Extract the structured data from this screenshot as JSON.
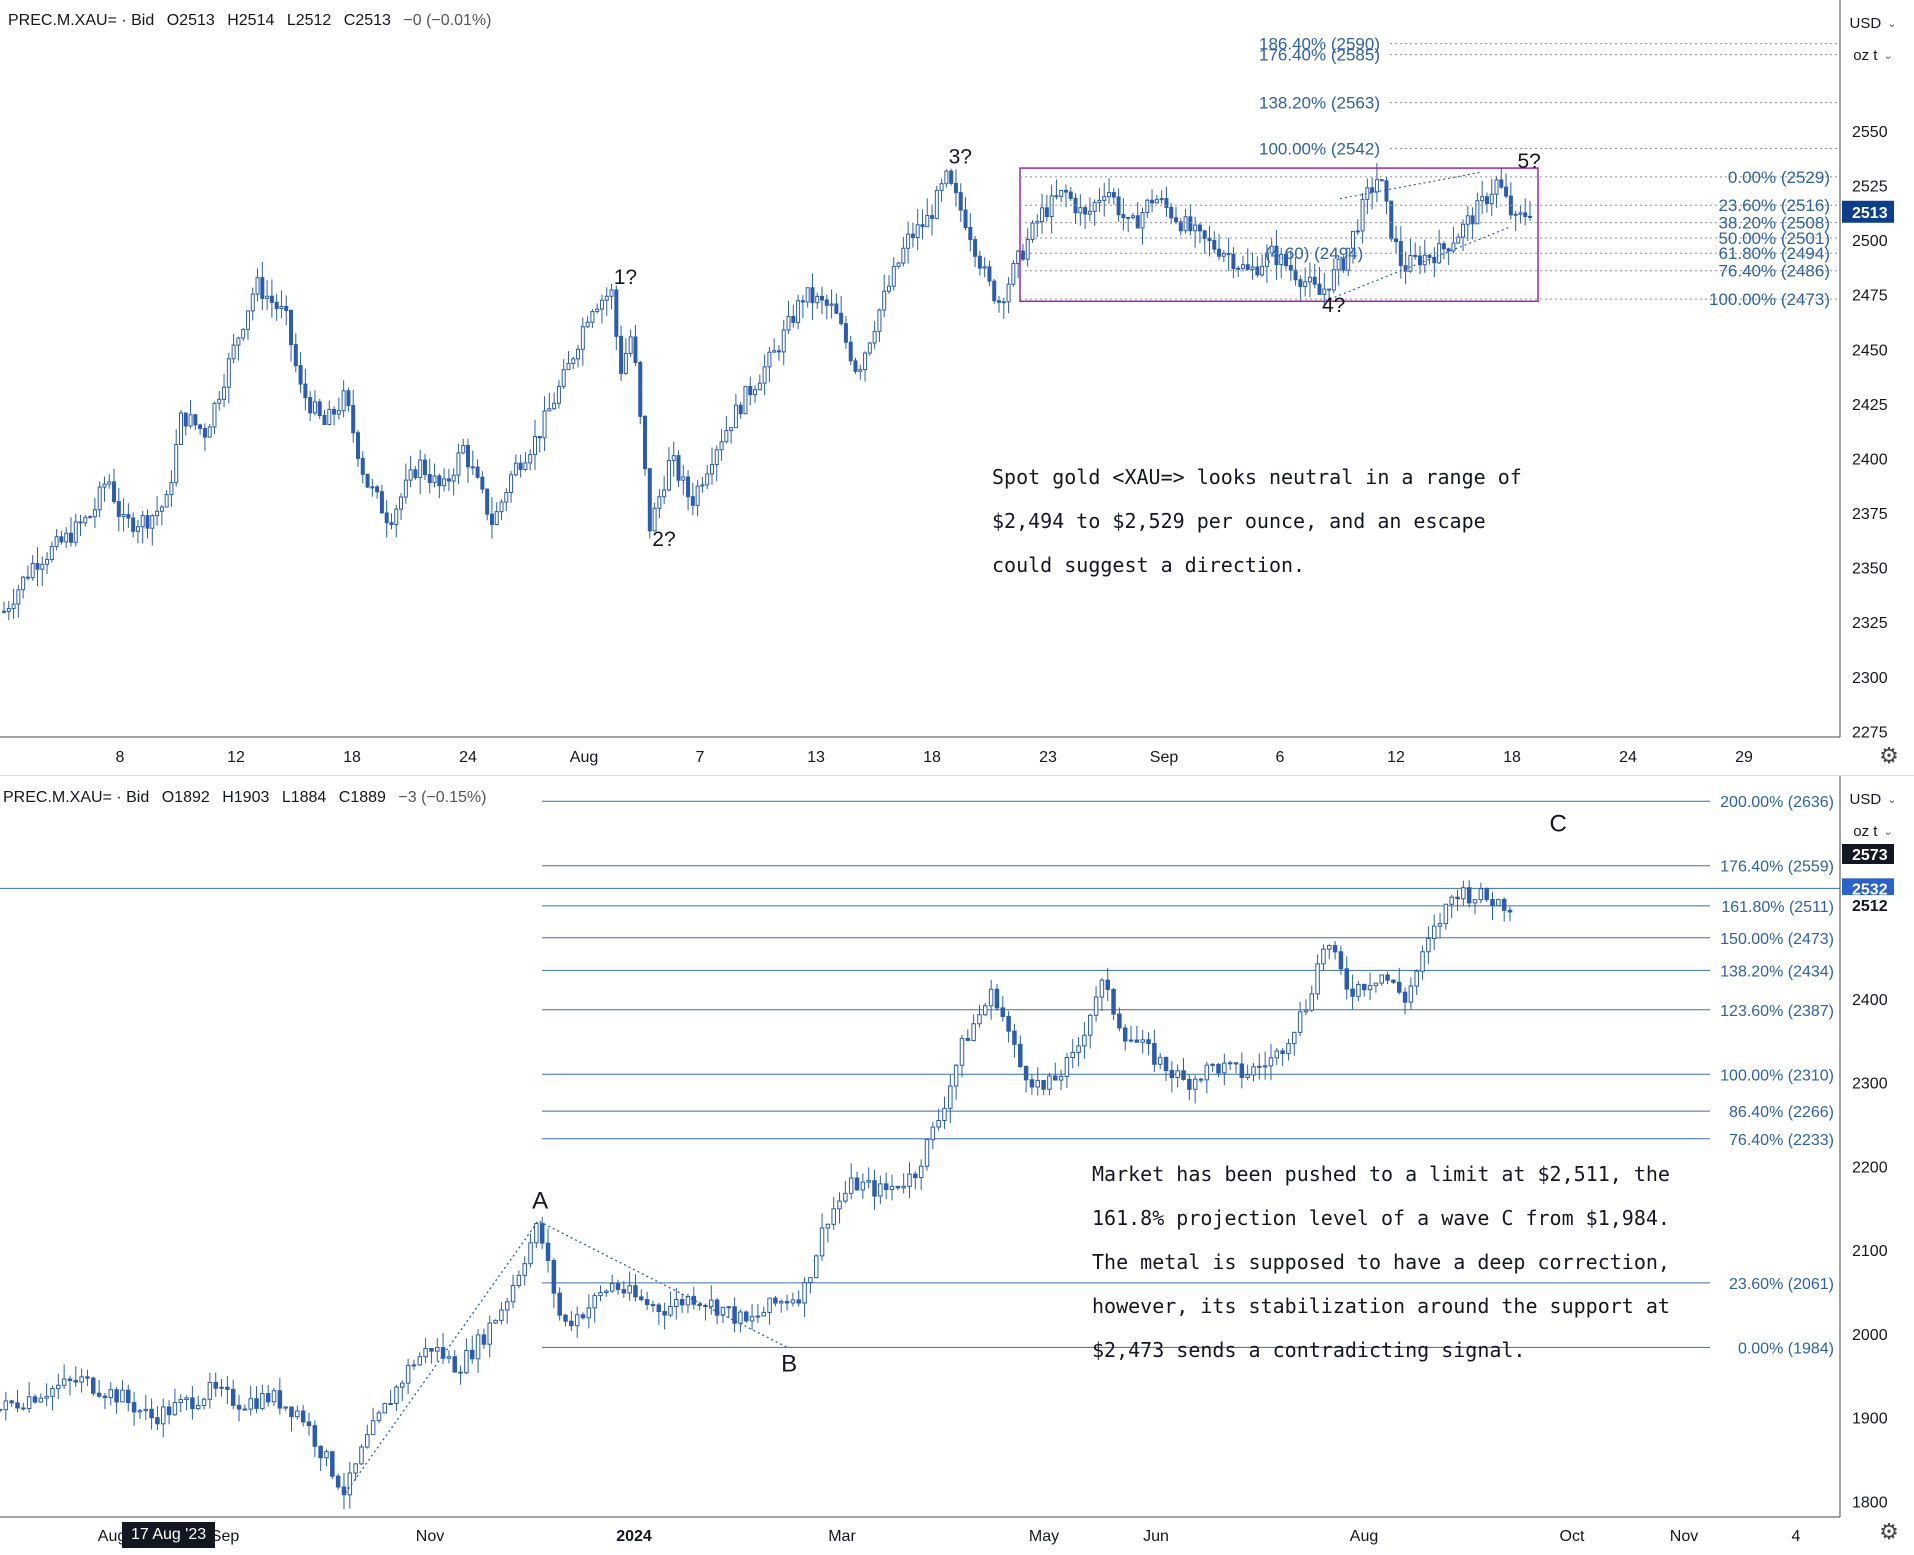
{
  "chart_data": [
    {
      "type": "candlestick",
      "header": {
        "symbol": "PREC.M.XAU= · Bid",
        "open": "O2513",
        "high": "H2514",
        "low": "L2512",
        "close": "C2513",
        "change": "−0 (−0.01%)"
      },
      "currency": "USD",
      "unit": "oz t",
      "ylim": [
        2255,
        2610
      ],
      "y_ticks": [
        2275,
        2300,
        2325,
        2350,
        2375,
        2400,
        2425,
        2450,
        2475,
        2500,
        2525,
        2550
      ],
      "x_ticks": [
        "",
        "8",
        "12",
        "18",
        "24",
        "Aug",
        "7",
        "13",
        "18",
        "23",
        "Sep",
        "6",
        "12",
        "18",
        "24",
        "29"
      ],
      "last_price": "2513",
      "price_path": [
        [
          0,
          2330
        ],
        [
          10,
          2352
        ],
        [
          20,
          2362
        ],
        [
          30,
          2375
        ],
        [
          35,
          2392
        ],
        [
          40,
          2370
        ],
        [
          48,
          2372
        ],
        [
          55,
          2380
        ],
        [
          60,
          2420
        ],
        [
          68,
          2412
        ],
        [
          75,
          2440
        ],
        [
          85,
          2480
        ],
        [
          95,
          2465
        ],
        [
          100,
          2432
        ],
        [
          108,
          2415
        ],
        [
          115,
          2428
        ],
        [
          122,
          2390
        ],
        [
          130,
          2372
        ],
        [
          140,
          2398
        ],
        [
          148,
          2385
        ],
        [
          155,
          2405
        ],
        [
          165,
          2370
        ],
        [
          172,
          2395
        ],
        [
          180,
          2410
        ],
        [
          190,
          2440
        ],
        [
          198,
          2470
        ],
        [
          205,
          2476
        ],
        [
          208,
          2440
        ],
        [
          212,
          2458
        ],
        [
          218,
          2368
        ],
        [
          225,
          2400
        ],
        [
          232,
          2380
        ],
        [
          240,
          2405
        ],
        [
          250,
          2428
        ],
        [
          260,
          2448
        ],
        [
          270,
          2475
        ],
        [
          280,
          2468
        ],
        [
          288,
          2440
        ],
        [
          296,
          2470
        ],
        [
          305,
          2500
        ],
        [
          312,
          2510
        ],
        [
          318,
          2528
        ],
        [
          325,
          2508
        ],
        [
          332,
          2480
        ],
        [
          336,
          2472
        ],
        [
          342,
          2490
        ],
        [
          350,
          2512
        ],
        [
          358,
          2522
        ],
        [
          365,
          2510
        ],
        [
          372,
          2525
        ],
        [
          380,
          2505
        ],
        [
          388,
          2520
        ],
        [
          396,
          2510
        ],
        [
          404,
          2500
        ],
        [
          412,
          2495
        ],
        [
          420,
          2485
        ],
        [
          428,
          2494
        ],
        [
          436,
          2485
        ],
        [
          444,
          2475
        ],
        [
          452,
          2490
        ],
        [
          460,
          2520
        ],
        [
          464,
          2530
        ],
        [
          468,
          2505
        ],
        [
          472,
          2487
        ],
        [
          478,
          2492
        ],
        [
          485,
          2495
        ],
        [
          492,
          2505
        ],
        [
          498,
          2515
        ],
        [
          504,
          2527
        ],
        [
          510,
          2508
        ],
        [
          515,
          2514
        ]
      ],
      "fib_retracement": [
        {
          "label": "0.00% (2529)",
          "price": 2529
        },
        {
          "label": "23.60% (2516)",
          "price": 2516
        },
        {
          "label": "38.20% (2508)",
          "price": 2508
        },
        {
          "label": "50.00% (2501)",
          "price": 2501
        },
        {
          "label": "61.80% (2494)",
          "price": 2494
        },
        {
          "label": "76.40% (2486)",
          "price": 2486
        },
        {
          "label": "100.00% (2473)",
          "price": 2473
        }
      ],
      "fib_extension": [
        {
          "label": "186.40% (2590)",
          "price": 2590
        },
        {
          "label": "176.40% (2585)",
          "price": 2585
        },
        {
          "label": "138.20% (2563)",
          "price": 2563
        },
        {
          "label": "100.00% (2542)",
          "price": 2542
        }
      ],
      "inner_label": "(4.60) (2494)",
      "wave_labels": [
        {
          "text": "1?",
          "x": 205,
          "price": 2480
        },
        {
          "text": "2?",
          "x": 218,
          "price": 2360
        },
        {
          "text": "3?",
          "x": 318,
          "price": 2535
        },
        {
          "text": "4?",
          "x": 444,
          "price": 2467
        },
        {
          "text": "5?",
          "x": 510,
          "price": 2533
        }
      ],
      "annotation": [
        "Spot gold <XAU=> looks neutral in a range of",
        "$2,494 to $2,529 per ounce, and an escape",
        "could suggest a direction."
      ]
    },
    {
      "type": "candlestick",
      "header": {
        "symbol": "PREC.M.XAU= · Bid",
        "open": "O1892",
        "high": "H1903",
        "low": "L1884",
        "close": "C1889",
        "change": "−3 (−0.15%)"
      },
      "currency": "USD",
      "unit": "oz t",
      "ylim": [
        1760,
        2690
      ],
      "y_ticks": [
        1800,
        1900,
        2000,
        2100,
        2200,
        2300,
        2400,
        2500
      ],
      "x_ticks": [
        "Aug",
        "Sep",
        "Nov",
        "2024",
        "Mar",
        "May",
        "Jun",
        "Aug",
        "Oct",
        "Nov",
        "4"
      ],
      "date_tag": "17 Aug '23",
      "price_tags": [
        {
          "text": "2573",
          "price": 2573
        },
        {
          "text": "2532",
          "price": 2532
        },
        {
          "text": "2512",
          "price": 2512
        }
      ],
      "price_path": [
        [
          0,
          1910
        ],
        [
          20,
          1930
        ],
        [
          40,
          1945
        ],
        [
          60,
          1925
        ],
        [
          75,
          1900
        ],
        [
          90,
          1915
        ],
        [
          105,
          1932
        ],
        [
          120,
          1918
        ],
        [
          135,
          1925
        ],
        [
          150,
          1905
        ],
        [
          160,
          1860
        ],
        [
          172,
          1810
        ],
        [
          182,
          1870
        ],
        [
          195,
          1925
        ],
        [
          205,
          1965
        ],
        [
          215,
          1985
        ],
        [
          228,
          1960
        ],
        [
          240,
          1995
        ],
        [
          252,
          2040
        ],
        [
          268,
          2130
        ],
        [
          280,
          2010
        ],
        [
          292,
          2030
        ],
        [
          305,
          2060
        ],
        [
          318,
          2040
        ],
        [
          330,
          2030
        ],
        [
          345,
          2045
        ],
        [
          360,
          2030
        ],
        [
          372,
          2012
        ],
        [
          385,
          2035
        ],
        [
          400,
          2050
        ],
        [
          412,
          2140
        ],
        [
          425,
          2180
        ],
        [
          440,
          2170
        ],
        [
          455,
          2190
        ],
        [
          468,
          2260
        ],
        [
          480,
          2350
        ],
        [
          495,
          2410
        ],
        [
          508,
          2320
        ],
        [
          520,
          2290
        ],
        [
          535,
          2330
        ],
        [
          548,
          2420
        ],
        [
          560,
          2360
        ],
        [
          575,
          2330
        ],
        [
          590,
          2300
        ],
        [
          605,
          2320
        ],
        [
          620,
          2310
        ],
        [
          635,
          2330
        ],
        [
          650,
          2390
        ],
        [
          660,
          2470
        ],
        [
          672,
          2410
        ],
        [
          688,
          2430
        ],
        [
          700,
          2400
        ],
        [
          712,
          2470
        ],
        [
          725,
          2530
        ],
        [
          740,
          2520
        ],
        [
          752,
          2512
        ]
      ],
      "fib_levels": [
        {
          "label": "200.00% (2636)",
          "price": 2636
        },
        {
          "label": "176.40% (2559)",
          "price": 2559
        },
        {
          "label": "161.80% (2511)",
          "price": 2511
        },
        {
          "label": "150.00% (2473)",
          "price": 2473
        },
        {
          "label": "138.20% (2434)",
          "price": 2434
        },
        {
          "label": "123.60% (2387)",
          "price": 2387
        },
        {
          "label": "100.00% (2310)",
          "price": 2310
        },
        {
          "label": "86.40% (2266)",
          "price": 2266
        },
        {
          "label": "76.40% (2233)",
          "price": 2233
        },
        {
          "label": "23.60% (2061)",
          "price": 2061
        },
        {
          "label": "0.00% (1984)",
          "price": 1984
        }
      ],
      "wave_labels": [
        {
          "text": "A",
          "x": 268,
          "price": 2150
        },
        {
          "text": "B",
          "x": 392,
          "price": 1955
        },
        {
          "text": "C",
          "x": 775,
          "price": 2600
        }
      ],
      "annotation": [
        "Market has been pushed to a limit at $2,511, the",
        "161.8% projection level of a wave C from $1,984.",
        "The metal is supposed to have a deep correction,",
        "however, its stabilization around the support at",
        "$2,473 sends a contradicting signal."
      ]
    }
  ]
}
